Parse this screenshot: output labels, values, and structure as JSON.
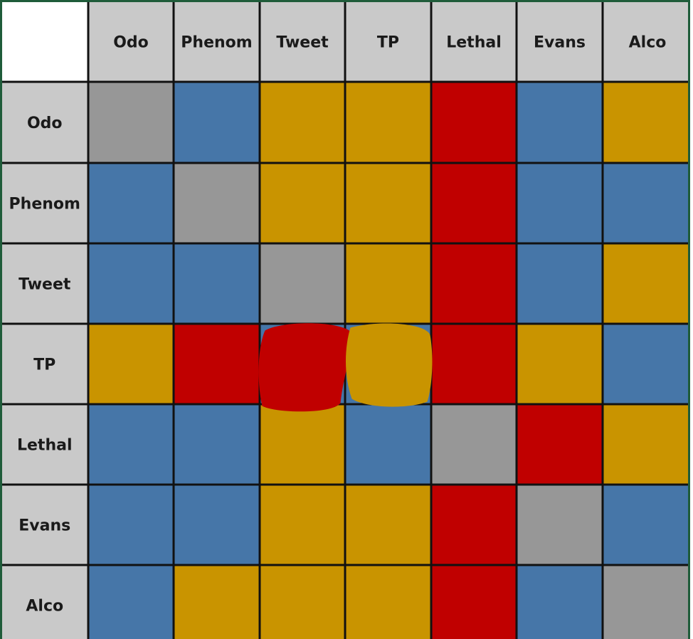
{
  "chart_data": {
    "type": "heatmap",
    "columns": [
      "Odo",
      "Phenom",
      "Tweet",
      "TP",
      "Lethal",
      "Evans",
      "Alco"
    ],
    "rows": [
      "Odo",
      "Phenom",
      "Tweet",
      "TP",
      "Lethal",
      "Evans",
      "Alco"
    ],
    "color_key": {
      "grey": "#979797",
      "blue": "#4676a8",
      "gold": "#c99400",
      "red": "#c00000"
    },
    "header_fill": "#c9c9c9",
    "cells": [
      [
        "grey",
        "blue",
        "gold",
        "gold",
        "red",
        "blue",
        "gold"
      ],
      [
        "blue",
        "grey",
        "gold",
        "gold",
        "red",
        "blue",
        "blue"
      ],
      [
        "blue",
        "blue",
        "grey",
        "gold",
        "red",
        "blue",
        "gold"
      ],
      [
        "gold",
        "red",
        "red",
        "gold",
        "red",
        "gold",
        "blue"
      ],
      [
        "blue",
        "blue",
        "gold",
        "blue",
        "grey",
        "red",
        "gold"
      ],
      [
        "blue",
        "blue",
        "gold",
        "gold",
        "red",
        "grey",
        "blue"
      ],
      [
        "blue",
        "gold",
        "gold",
        "gold",
        "red",
        "blue",
        "grey"
      ]
    ],
    "hand_painted_cells": [
      [
        3,
        2
      ],
      [
        3,
        3
      ]
    ]
  }
}
